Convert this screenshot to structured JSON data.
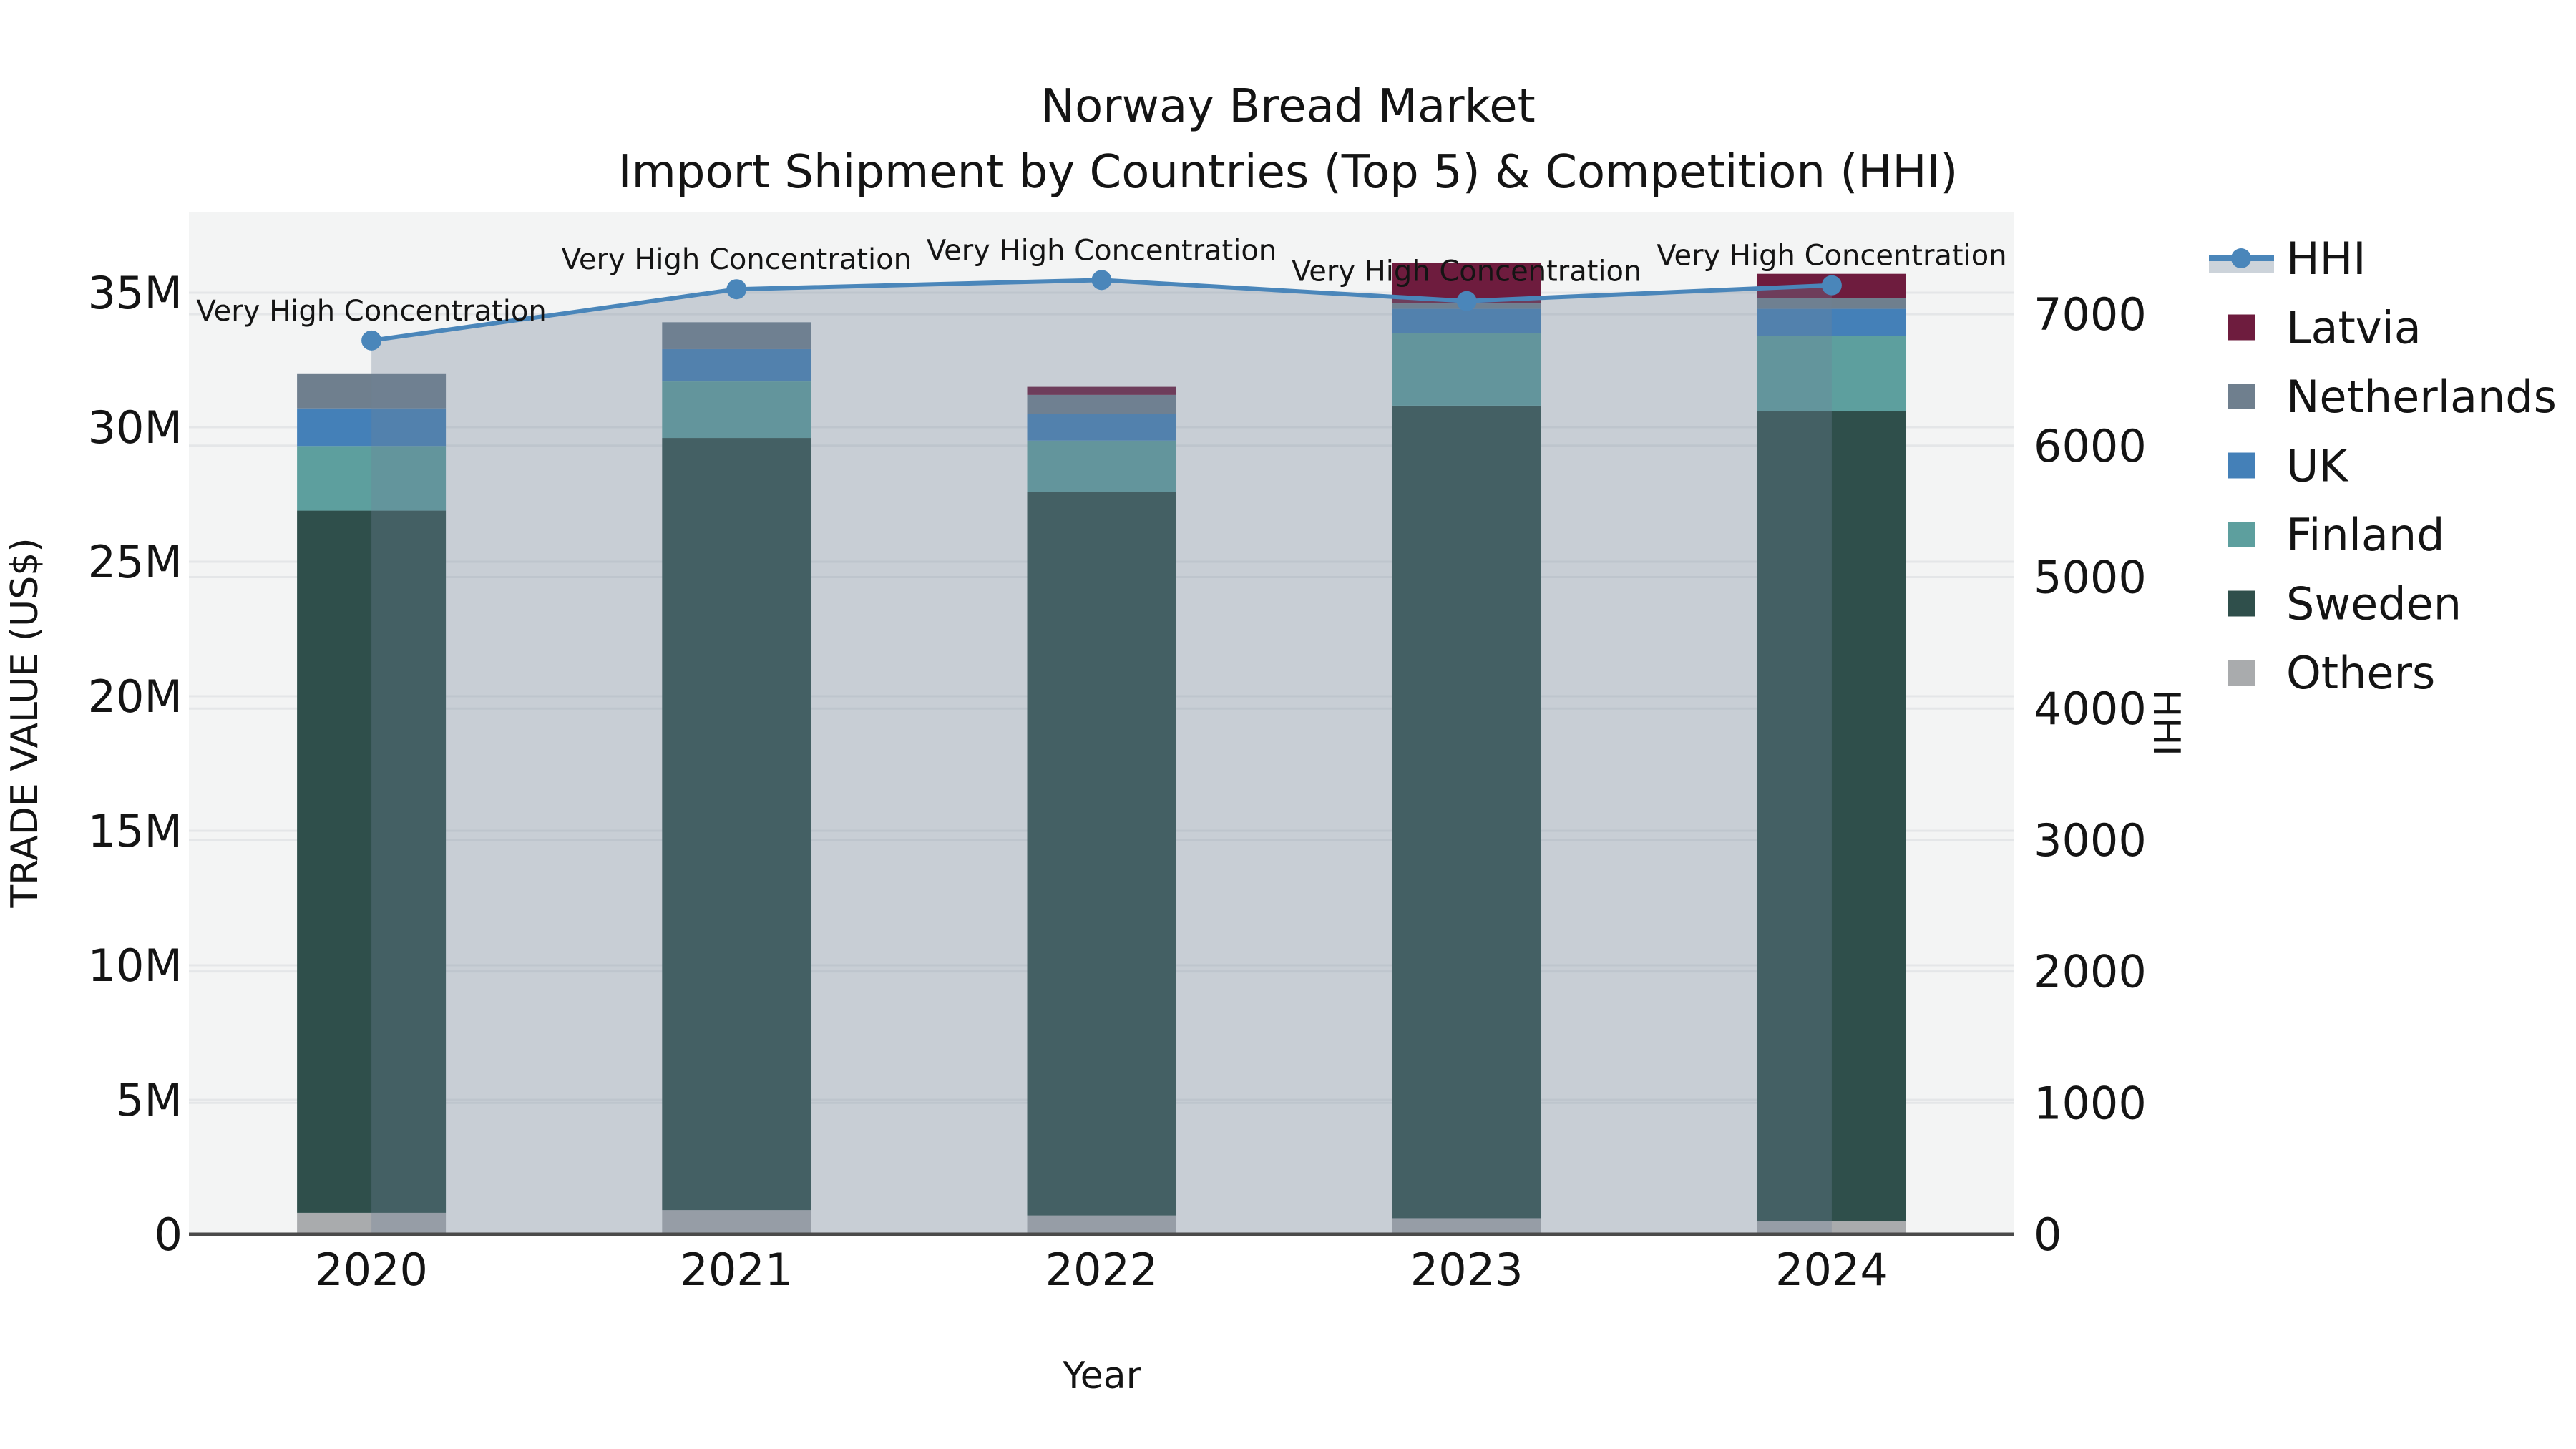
{
  "title": {
    "line1": "Norway Bread Market",
    "line2": "Import Shipment by Countries (Top 5) & Competition (HHI)"
  },
  "axes": {
    "x_label": "Year",
    "y_left_label": "TRADE VALUE (US$)",
    "y_right_label": "HHI",
    "y_left_tick_labels": [
      "0",
      "5M",
      "10M",
      "15M",
      "20M",
      "25M",
      "30M",
      "35M"
    ],
    "y_left_tick_values_millions": [
      0,
      5,
      10,
      15,
      20,
      25,
      30,
      35
    ],
    "y_right_tick_labels": [
      "0",
      "1000",
      "2000",
      "3000",
      "4000",
      "5000",
      "6000",
      "7000"
    ],
    "y_right_tick_values": [
      0,
      1000,
      2000,
      3000,
      4000,
      5000,
      6000,
      7000
    ]
  },
  "chart_data": {
    "type": "bar",
    "subtype": "stacked-bars-with-hhi-line-and-area",
    "title": "Norway Bread Market — Import Shipment by Countries (Top 5) & Competition (HHI)",
    "xlabel": "Year",
    "ylabel_left": "TRADE VALUE (US$)",
    "ylabel_right": "HHI",
    "categories": [
      "2020",
      "2021",
      "2022",
      "2023",
      "2024"
    ],
    "value_unit": "US$ millions",
    "ylim_left_millions": [
      0,
      38
    ],
    "ylim_right_hhi": [
      0,
      7780
    ],
    "grid": true,
    "legend_position": "right-outside",
    "series": [
      {
        "name": "Others",
        "color": "#a9abad",
        "values": [
          0.8,
          0.9,
          0.7,
          0.6,
          0.5
        ]
      },
      {
        "name": "Sweden",
        "color": "#2f4f4b",
        "values": [
          26.1,
          28.7,
          26.9,
          30.2,
          30.1
        ]
      },
      {
        "name": "Finland",
        "color": "#5d9f9e",
        "values": [
          2.4,
          2.1,
          1.9,
          2.7,
          2.8
        ]
      },
      {
        "name": "UK",
        "color": "#4480b8",
        "values": [
          1.4,
          1.2,
          1.0,
          0.9,
          1.0
        ]
      },
      {
        "name": "Netherlands",
        "color": "#6f7f8e",
        "values": [
          1.3,
          1.0,
          0.7,
          0.2,
          0.4
        ]
      },
      {
        "name": "Latvia",
        "color": "#6e1c3e",
        "values": [
          0,
          0,
          0.3,
          1.5,
          0.9
        ]
      }
    ],
    "bar_totals_millions": [
      32.0,
      33.9,
      31.5,
      36.1,
      35.7
    ],
    "line_series": {
      "name": "HHI",
      "color": "#4a86ba",
      "area_fill": "rgba(113,131,152,0.33)",
      "values": [
        6800,
        7190,
        7260,
        7100,
        7220
      ]
    },
    "annotations": [
      {
        "x": "2020",
        "text": "Very High Concentration"
      },
      {
        "x": "2021",
        "text": "Very High Concentration"
      },
      {
        "x": "2022",
        "text": "Very High Concentration"
      },
      {
        "x": "2023",
        "text": "Very High Concentration"
      },
      {
        "x": "2024",
        "text": "Very High Concentration"
      }
    ]
  },
  "legend": {
    "items": [
      {
        "label": "HHI",
        "kind": "line",
        "color": "#4a86ba",
        "band_color": "#ccd3da"
      },
      {
        "label": "Latvia",
        "kind": "swatch",
        "color": "#6e1c3e"
      },
      {
        "label": "Netherlands",
        "kind": "swatch",
        "color": "#6f7f8e"
      },
      {
        "label": "UK",
        "kind": "swatch",
        "color": "#4480b8"
      },
      {
        "label": "Finland",
        "kind": "swatch",
        "color": "#5d9f9e"
      },
      {
        "label": "Sweden",
        "kind": "swatch",
        "color": "#2f4f4b"
      },
      {
        "label": "Others",
        "kind": "swatch",
        "color": "#a9abad"
      }
    ]
  },
  "colors": {
    "plot_background": "#f3f4f4",
    "grid_line": "#e4e6e8",
    "axis_line": "#4a4a4a",
    "text": "#141414",
    "hhi_line": "#4a86ba",
    "hhi_area_fill": "rgba(113,131,152,0.33)",
    "legend_band": "#ccd3da"
  }
}
